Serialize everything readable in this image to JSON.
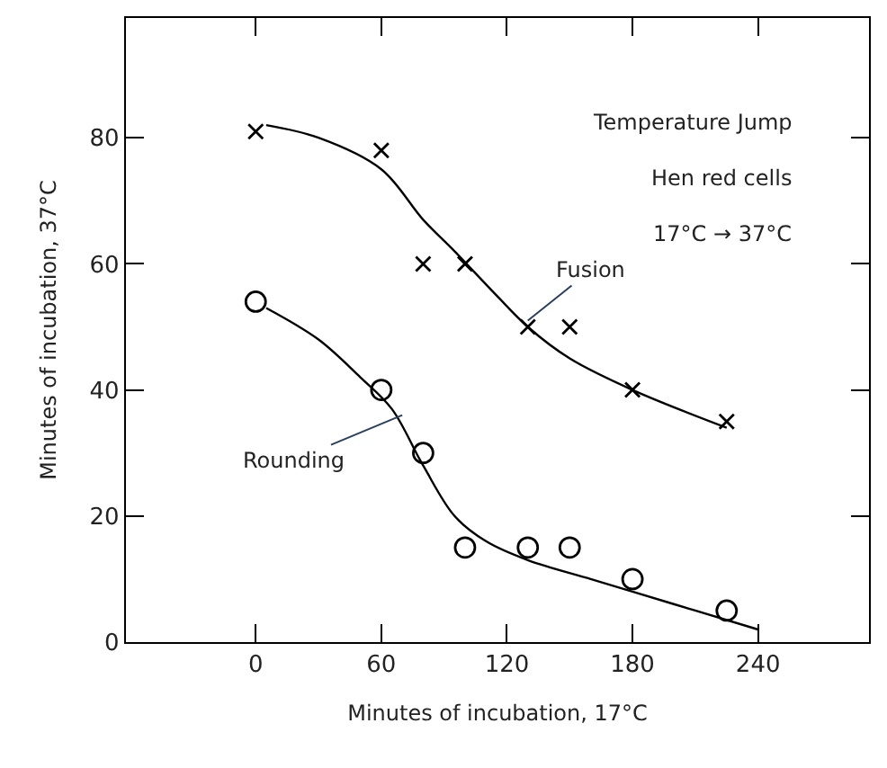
{
  "chart_data": {
    "type": "scatter",
    "xlabel": "Minutes of incubation, 17°C",
    "ylabel": "Minutes of incubation, 37°C",
    "xlim": [
      -62,
      293
    ],
    "ylim": [
      0,
      99
    ],
    "xticks": [
      0,
      60,
      120,
      180,
      240
    ],
    "yticks": [
      0,
      20,
      40,
      60,
      80
    ],
    "series": [
      {
        "marker": "cross",
        "color": "#000000",
        "x": [
          0,
          60,
          80,
          100,
          130,
          150,
          180,
          225
        ],
        "values": [
          81,
          78,
          60,
          60,
          50,
          50,
          40,
          35
        ]
      },
      {
        "marker": "circle",
        "color": "#000000",
        "x": [
          0,
          60,
          80,
          100,
          130,
          150,
          180,
          225
        ],
        "values": [
          54,
          40,
          30,
          15,
          15,
          15,
          10,
          5
        ]
      },
      {
        "type": "line",
        "marker": "none",
        "line_style": "solid",
        "color": "#000000",
        "x": [
          5,
          30,
          60,
          80,
          95,
          115,
          130,
          150,
          180,
          225
        ],
        "values": [
          82,
          80,
          75,
          67,
          62,
          55,
          50,
          45,
          40,
          34
        ]
      },
      {
        "type": "line",
        "marker": "none",
        "line_style": "solid",
        "color": "#000000",
        "x": [
          5,
          30,
          50,
          65,
          80,
          95,
          110,
          130,
          160,
          180,
          210,
          240
        ],
        "values": [
          53,
          48,
          42,
          37,
          28,
          20,
          16,
          13,
          10,
          8,
          5,
          2
        ]
      }
    ],
    "annotations": [
      "Temperature Jump",
      "Hen red cells",
      "17°C → 37°C",
      {
        "text": "Fusion",
        "x": 130,
        "y": 51
      },
      {
        "text": "Rounding",
        "x": 70,
        "y": 36
      }
    ]
  }
}
